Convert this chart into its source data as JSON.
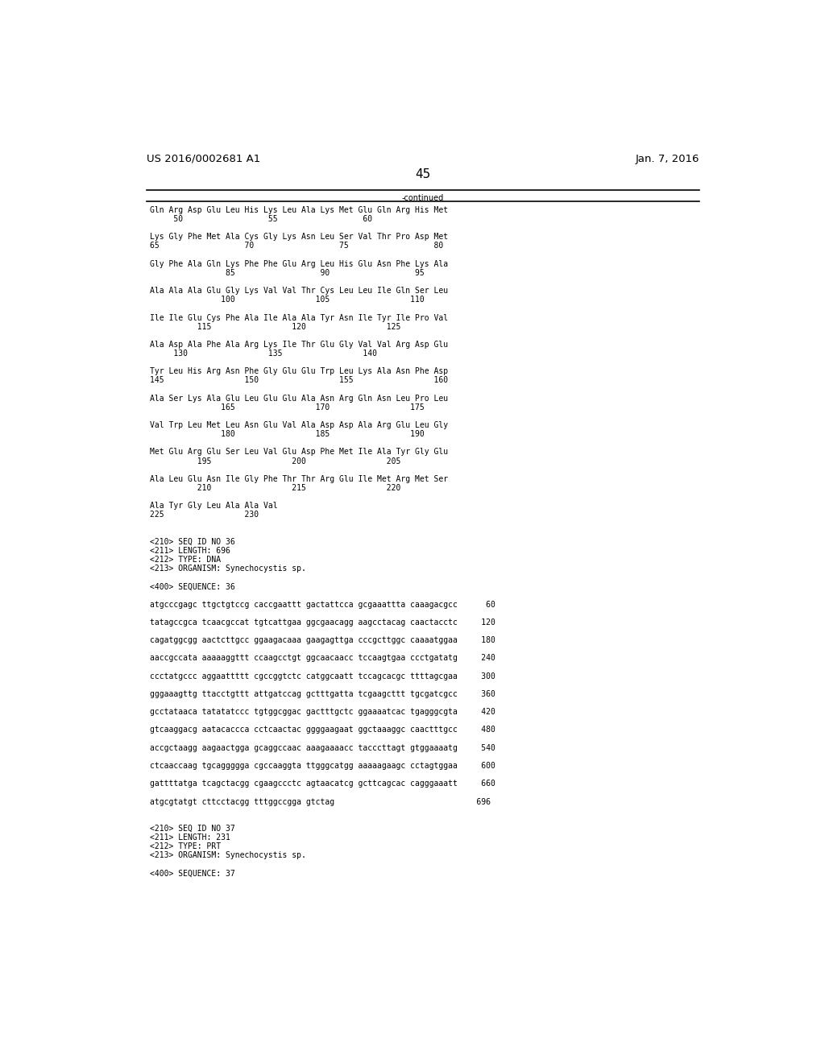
{
  "header_left": "US 2016/0002681 A1",
  "header_right": "Jan. 7, 2016",
  "page_number": "45",
  "continued_label": "-continued",
  "background_color": "#ffffff",
  "text_color": "#000000",
  "font_size": 7.0,
  "mono_font": "DejaVu Sans Mono",
  "header_font_size": 9.5,
  "page_num_font_size": 11,
  "content_lines": [
    "Gln Arg Asp Glu Leu His Lys Leu Ala Lys Met Glu Gln Arg His Met",
    "     50                  55                  60",
    "",
    "Lys Gly Phe Met Ala Cys Gly Lys Asn Leu Ser Val Thr Pro Asp Met",
    "65                  70                  75                  80",
    "",
    "Gly Phe Ala Gln Lys Phe Phe Glu Arg Leu His Glu Asn Phe Lys Ala",
    "                85                  90                  95",
    "",
    "Ala Ala Ala Glu Gly Lys Val Val Thr Cys Leu Leu Ile Gln Ser Leu",
    "               100                 105                 110",
    "",
    "Ile Ile Glu Cys Phe Ala Ile Ala Ala Tyr Asn Ile Tyr Ile Pro Val",
    "          115                 120                 125",
    "",
    "Ala Asp Ala Phe Ala Arg Lys Ile Thr Glu Gly Val Val Arg Asp Glu",
    "     130                 135                 140",
    "",
    "Tyr Leu His Arg Asn Phe Gly Glu Glu Trp Leu Lys Ala Asn Phe Asp",
    "145                 150                 155                 160",
    "",
    "Ala Ser Lys Ala Glu Leu Glu Glu Ala Asn Arg Gln Asn Leu Pro Leu",
    "               165                 170                 175",
    "",
    "Val Trp Leu Met Leu Asn Glu Val Ala Asp Asp Ala Arg Glu Leu Gly",
    "               180                 185                 190",
    "",
    "Met Glu Arg Glu Ser Leu Val Glu Asp Phe Met Ile Ala Tyr Gly Glu",
    "          195                 200                 205",
    "",
    "Ala Leu Glu Asn Ile Gly Phe Thr Thr Arg Glu Ile Met Arg Met Ser",
    "          210                 215                 220",
    "",
    "Ala Tyr Gly Leu Ala Ala Val",
    "225                 230",
    "",
    "",
    "<210> SEQ ID NO 36",
    "<211> LENGTH: 696",
    "<212> TYPE: DNA",
    "<213> ORGANISM: Synechocystis sp.",
    "",
    "<400> SEQUENCE: 36",
    "",
    "atgcccgagc ttgctgtccg caccgaattt gactattcca gcgaaattta caaagacgcc      60",
    "",
    "tatagccgca tcaacgccat tgtcattgaa ggcgaacagg aagcctacag caactacctc     120",
    "",
    "cagatggcgg aactcttgcc ggaagacaaa gaagagttga cccgcttggc caaaatggaa     180",
    "",
    "aaccgccata aaaaaggttt ccaagcctgt ggcaacaacc tccaagtgaa ccctgatatg     240",
    "",
    "ccctatgccc aggaattttt cgccggtctc catggcaatt tccagcacgc ttttagcgaa     300",
    "",
    "gggaaagttg ttacctgttt attgatccag gctttgatta tcgaagcttt tgcgatcgcc     360",
    "",
    "gcctataaca tatatatccc tgtggcggac gactttgctc ggaaaatcac tgagggcgta     420",
    "",
    "gtcaaggacg aatacaccca cctcaactac ggggaagaat ggctaaaggc caactttgcc     480",
    "",
    "accgctaagg aagaactgga gcaggccaac aaagaaaacc tacccttagt gtggaaaatg     540",
    "",
    "ctcaaccaag tgcaggggga cgccaaggta ttgggcatgg aaaaagaagc cctagtggaa     600",
    "",
    "gattttatga tcagctacgg cgaagccctc agtaacatcg gcttcagcac cagggaaatt     660",
    "",
    "atgcgtatgt cttcctacgg tttggccgga gtctag                              696",
    "",
    "",
    "<210> SEQ ID NO 37",
    "<211> LENGTH: 231",
    "<212> TYPE: PRT",
    "<213> ORGANISM: Synechocystis sp.",
    "",
    "<400> SEQUENCE: 37"
  ]
}
